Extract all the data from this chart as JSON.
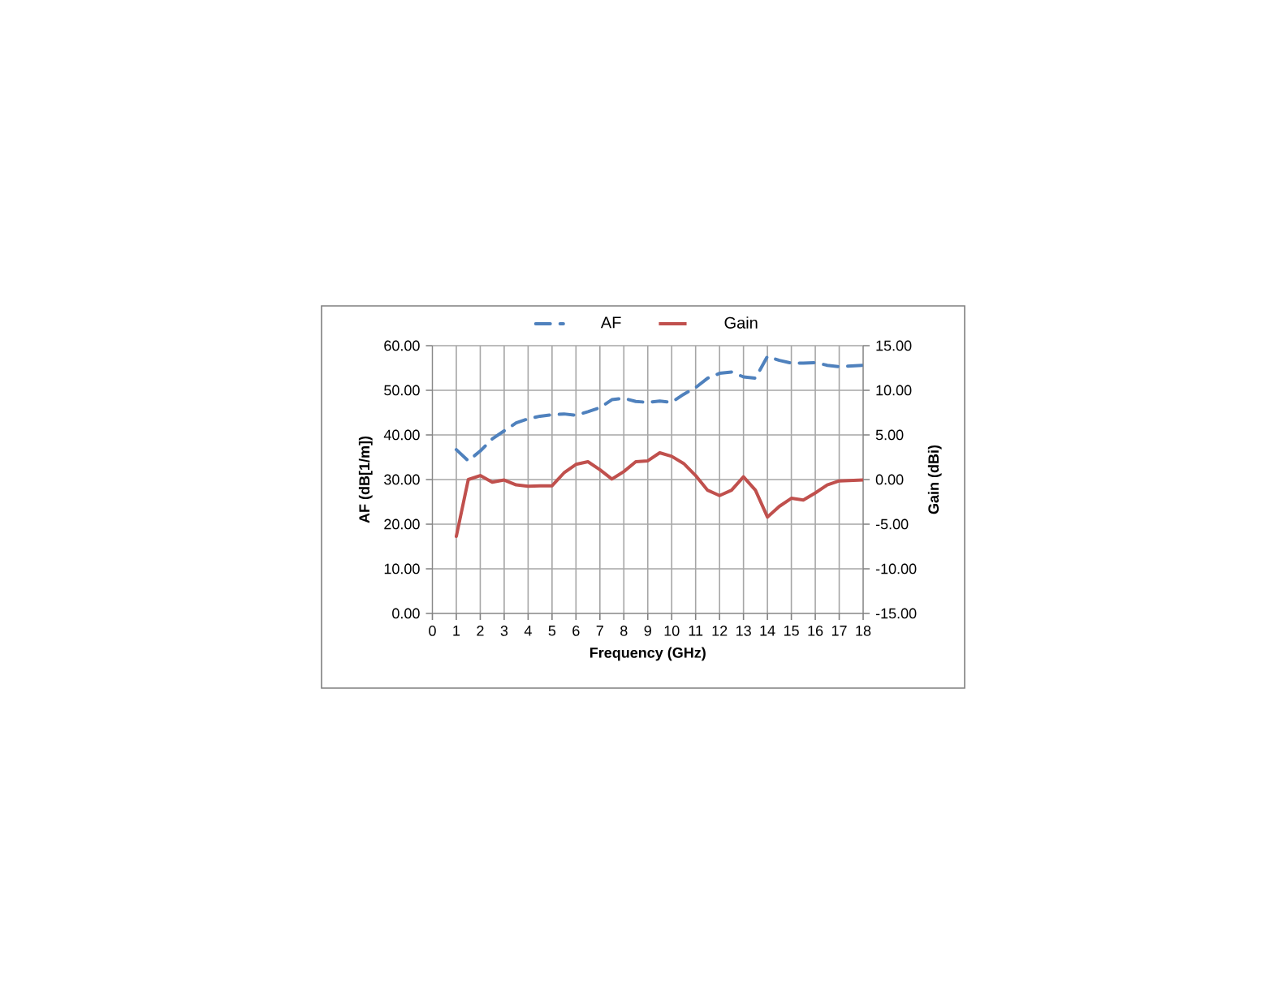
{
  "chart_data": {
    "type": "line",
    "xlabel": "Frequency (GHz)",
    "ylabel": "AF (dB[1/m])",
    "y2label": "Gain (dBi)",
    "xlim": [
      0,
      18
    ],
    "xticks": [
      0,
      1,
      2,
      3,
      4,
      5,
      6,
      7,
      8,
      9,
      10,
      11,
      12,
      13,
      14,
      15,
      16,
      17,
      18
    ],
    "ylim": [
      0,
      60
    ],
    "yticks": [
      {
        "value": 0,
        "label": "0.00"
      },
      {
        "value": 10,
        "label": "10.00"
      },
      {
        "value": 20,
        "label": "20.00"
      },
      {
        "value": 30,
        "label": "30.00"
      },
      {
        "value": 40,
        "label": "40.00"
      },
      {
        "value": 50,
        "label": "50.00"
      },
      {
        "value": 60,
        "label": "60.00"
      }
    ],
    "y2lim": [
      -15,
      15
    ],
    "y2ticks": [
      {
        "value": -15,
        "label": "-15.00"
      },
      {
        "value": -10,
        "label": "-10.00"
      },
      {
        "value": -5,
        "label": "-5.00"
      },
      {
        "value": 0,
        "label": "0.00"
      },
      {
        "value": 5,
        "label": "5.00"
      },
      {
        "value": 10,
        "label": "10.00"
      },
      {
        "value": 15,
        "label": "15.00"
      }
    ],
    "grid": true,
    "legend": "top",
    "x": [
      1,
      1.5,
      2,
      2.5,
      3,
      3.5,
      4,
      4.5,
      5,
      5.5,
      6,
      6.5,
      7,
      7.5,
      8,
      8.5,
      9,
      9.5,
      10,
      10.5,
      11,
      11.5,
      12,
      12.5,
      13,
      13.5,
      14,
      14.5,
      15,
      15.5,
      16,
      16.5,
      17,
      18
    ],
    "series": [
      {
        "name": "AF",
        "color": "#4f81bd",
        "line_style": "dashed",
        "values": [
          36.7,
          34.2,
          36.4,
          39.1,
          40.9,
          42.7,
          43.6,
          44.2,
          44.5,
          44.7,
          44.4,
          45.2,
          46.1,
          47.9,
          48.2,
          47.5,
          47.3,
          47.6,
          47.3,
          49.1,
          50.6,
          52.7,
          53.8,
          54.1,
          53.0,
          52.7,
          57.6,
          56.7,
          56.1,
          56.1,
          56.2,
          55.6,
          55.3,
          55.6
        ]
      },
      {
        "name": "Gain",
        "color": "#c0504d",
        "line_style": "solid",
        "axis": "y2",
        "values": [
          -6.36,
          0.0,
          0.45,
          -0.3,
          -0.05,
          -0.6,
          -0.75,
          -0.7,
          -0.7,
          0.75,
          1.7,
          2.0,
          1.1,
          0.05,
          0.9,
          2.0,
          2.1,
          3.0,
          2.6,
          1.8,
          0.45,
          -1.2,
          -1.8,
          -1.2,
          0.3,
          -1.2,
          -4.2,
          -3.0,
          -2.1,
          -2.3,
          -1.5,
          -0.6,
          -0.15,
          -0.05
        ]
      }
    ]
  }
}
